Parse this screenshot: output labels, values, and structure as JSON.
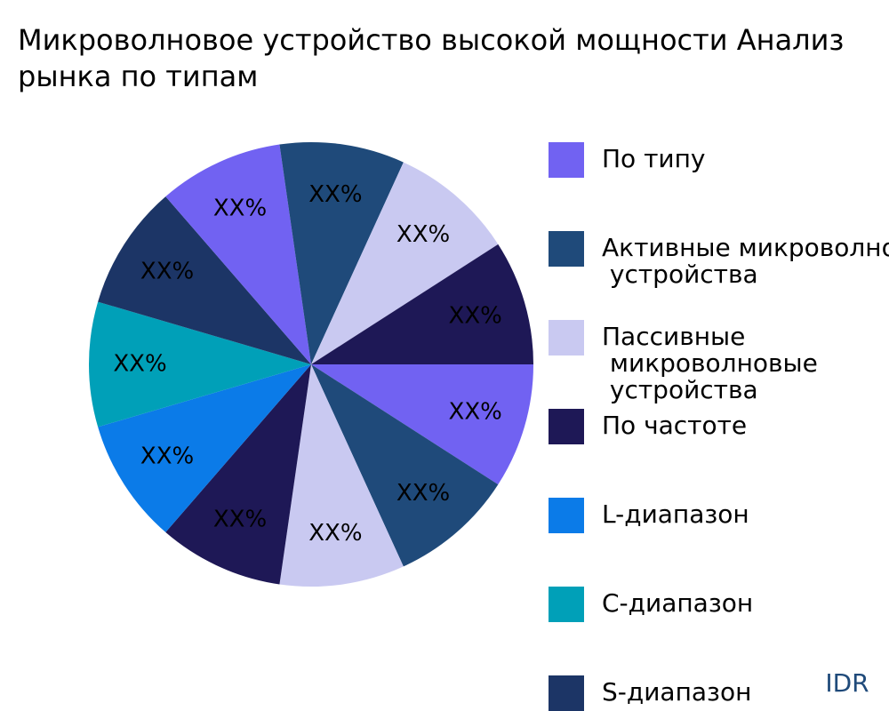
{
  "chart_data": {
    "type": "pie",
    "title": [
      "Микроволновое устройство высокой мощности Анализ",
      "рынка по типам"
    ],
    "categories": [
      "По типу",
      "Активные микроволновые устройства",
      "Пассивные микроволновые устройства",
      "По частоте",
      "L-диапазон",
      "C-диапазон",
      "S-диапазон",
      null,
      null,
      null,
      null
    ],
    "values": [
      9.09,
      9.09,
      9.09,
      9.09,
      9.09,
      9.09,
      9.09,
      9.09,
      9.09,
      9.09,
      9.09
    ],
    "value_labels": [
      "XX%",
      "XX%",
      "XX%",
      "XX%",
      "XX%",
      "XX%",
      "XX%",
      "XX%",
      "XX%",
      "XX%",
      "XX%"
    ],
    "colors": [
      "#7162f2",
      "#1f4a7a",
      "#c9c9f1",
      "#1e1856",
      "#0b7be8",
      "#00a0b8",
      "#1c3566",
      "#7162f2",
      "#1f4a7a",
      "#c9c9f1",
      "#1e1856"
    ],
    "watermark": "IDR"
  }
}
